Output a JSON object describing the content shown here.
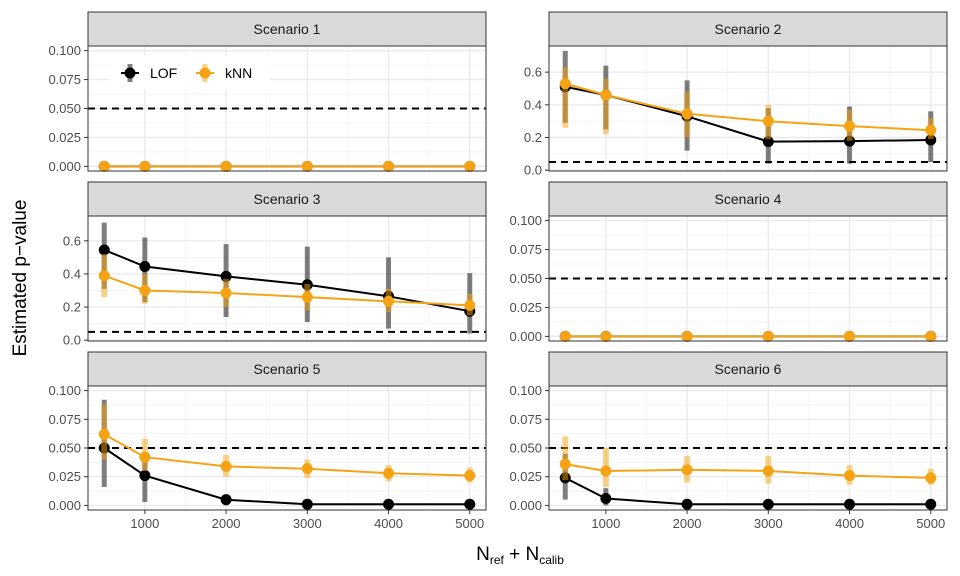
{
  "figure": {
    "ylabel": "Estimated p−value",
    "xlabel_main": "N",
    "xlabel_sub1": "ref",
    "xlabel_plus": " + N",
    "xlabel_sub2": "calib"
  },
  "colors": {
    "lof": "#000000",
    "knn": "#f5a314",
    "strip": "#d9d9d9",
    "threshold": "#000000"
  },
  "legend": {
    "panel_index": 0,
    "items": [
      "LOF",
      "kNN"
    ]
  },
  "chart_data": [
    {
      "type": "line",
      "title": "Scenario 1",
      "x": [
        500,
        1000,
        2000,
        3000,
        4000,
        5000
      ],
      "xlim": [
        300,
        5200
      ],
      "xticks": [
        1000,
        2000,
        3000,
        4000,
        5000
      ],
      "ylim": [
        -0.004,
        0.104
      ],
      "yticks": [
        0.0,
        0.025,
        0.05,
        0.075,
        0.1
      ],
      "ytick_labels": [
        "0.000",
        "0.025",
        "0.050",
        "0.075",
        "0.100"
      ],
      "threshold": 0.05,
      "show_xticks": false,
      "series": [
        {
          "name": "LOF",
          "values": [
            0,
            0,
            0,
            0,
            0,
            0
          ],
          "low": [
            0,
            0,
            0,
            0,
            0,
            0
          ],
          "high": [
            0,
            0,
            0,
            0,
            0,
            0
          ]
        },
        {
          "name": "kNN",
          "values": [
            0,
            0,
            0,
            0,
            0,
            0
          ],
          "low": [
            0,
            0,
            0,
            0,
            0,
            0
          ],
          "high": [
            0,
            0,
            0,
            0,
            0,
            0
          ]
        }
      ]
    },
    {
      "type": "line",
      "title": "Scenario 2",
      "x": [
        500,
        1000,
        2000,
        3000,
        4000,
        5000
      ],
      "xlim": [
        300,
        5200
      ],
      "xticks": [
        1000,
        2000,
        3000,
        4000,
        5000
      ],
      "ylim": [
        -0.005,
        0.76
      ],
      "yticks": [
        0.0,
        0.2,
        0.4,
        0.6
      ],
      "ytick_labels": [
        "0.0",
        "0.2",
        "0.4",
        "0.6"
      ],
      "threshold": 0.05,
      "show_xticks": false,
      "series": [
        {
          "name": "LOF",
          "values": [
            0.51,
            0.46,
            0.33,
            0.175,
            0.178,
            0.185
          ],
          "low": [
            0.29,
            0.25,
            0.12,
            0.04,
            0.04,
            0.05
          ],
          "high": [
            0.73,
            0.64,
            0.55,
            0.38,
            0.39,
            0.36
          ]
        },
        {
          "name": "kNN",
          "values": [
            0.53,
            0.46,
            0.345,
            0.3,
            0.27,
            0.245
          ],
          "low": [
            0.26,
            0.22,
            0.2,
            0.19,
            0.18,
            0.19
          ],
          "high": [
            0.63,
            0.56,
            0.48,
            0.4,
            0.37,
            0.32
          ]
        }
      ]
    },
    {
      "type": "line",
      "title": "Scenario 3",
      "x": [
        500,
        1000,
        2000,
        3000,
        4000,
        5000
      ],
      "xlim": [
        300,
        5200
      ],
      "xticks": [
        1000,
        2000,
        3000,
        4000,
        5000
      ],
      "ylim": [
        -0.005,
        0.75
      ],
      "yticks": [
        0.0,
        0.2,
        0.4,
        0.6
      ],
      "ytick_labels": [
        "0.0",
        "0.2",
        "0.4",
        "0.6"
      ],
      "threshold": 0.05,
      "show_xticks": false,
      "series": [
        {
          "name": "LOF",
          "values": [
            0.545,
            0.445,
            0.385,
            0.335,
            0.265,
            0.175
          ],
          "low": [
            0.31,
            0.23,
            0.14,
            0.11,
            0.07,
            0.04
          ],
          "high": [
            0.71,
            0.62,
            0.58,
            0.565,
            0.5,
            0.405
          ]
        },
        {
          "name": "kNN",
          "values": [
            0.39,
            0.3,
            0.285,
            0.26,
            0.235,
            0.21
          ],
          "low": [
            0.26,
            0.22,
            0.2,
            0.18,
            0.17,
            0.15
          ],
          "high": [
            0.52,
            0.4,
            0.37,
            0.34,
            0.31,
            0.28
          ]
        }
      ]
    },
    {
      "type": "line",
      "title": "Scenario 4",
      "x": [
        500,
        1000,
        2000,
        3000,
        4000,
        5000
      ],
      "xlim": [
        300,
        5200
      ],
      "xticks": [
        1000,
        2000,
        3000,
        4000,
        5000
      ],
      "ylim": [
        -0.004,
        0.104
      ],
      "yticks": [
        0.0,
        0.025,
        0.05,
        0.075,
        0.1
      ],
      "ytick_labels": [
        "0.000",
        "0.025",
        "0.050",
        "0.075",
        "0.100"
      ],
      "threshold": 0.05,
      "show_xticks": false,
      "series": [
        {
          "name": "LOF",
          "values": [
            0,
            0,
            0,
            0,
            0,
            0
          ],
          "low": [
            0,
            0,
            0,
            0,
            0,
            0
          ],
          "high": [
            0,
            0,
            0,
            0,
            0,
            0
          ]
        },
        {
          "name": "kNN",
          "values": [
            0,
            0,
            0,
            0,
            0,
            0
          ],
          "low": [
            0,
            0,
            0,
            0,
            0,
            0
          ],
          "high": [
            0,
            0,
            0,
            0,
            0,
            0
          ]
        }
      ]
    },
    {
      "type": "line",
      "title": "Scenario 5",
      "x": [
        500,
        1000,
        2000,
        3000,
        4000,
        5000
      ],
      "xlim": [
        300,
        5200
      ],
      "xticks": [
        1000,
        2000,
        3000,
        4000,
        5000
      ],
      "ylim": [
        -0.004,
        0.104
      ],
      "yticks": [
        0.0,
        0.025,
        0.05,
        0.075,
        0.1
      ],
      "ytick_labels": [
        "0.000",
        "0.025",
        "0.050",
        "0.075",
        "0.100"
      ],
      "threshold": 0.05,
      "show_xticks": true,
      "series": [
        {
          "name": "LOF",
          "values": [
            0.05,
            0.026,
            0.005,
            0.001,
            0.001,
            0.001
          ],
          "low": [
            0.016,
            0.003,
            0.0,
            0.0,
            0.0,
            0.0
          ],
          "high": [
            0.092,
            0.045,
            0.008,
            0.002,
            0.002,
            0.002
          ]
        },
        {
          "name": "kNN",
          "values": [
            0.062,
            0.042,
            0.034,
            0.032,
            0.028,
            0.026
          ],
          "low": [
            0.04,
            0.03,
            0.025,
            0.024,
            0.021,
            0.02
          ],
          "high": [
            0.088,
            0.058,
            0.044,
            0.04,
            0.035,
            0.033
          ]
        }
      ]
    },
    {
      "type": "line",
      "title": "Scenario 6",
      "x": [
        500,
        1000,
        2000,
        3000,
        4000,
        5000
      ],
      "xlim": [
        300,
        5200
      ],
      "xticks": [
        1000,
        2000,
        3000,
        4000,
        5000
      ],
      "ylim": [
        -0.004,
        0.104
      ],
      "yticks": [
        0.0,
        0.025,
        0.05,
        0.075,
        0.1
      ],
      "ytick_labels": [
        "0.000",
        "0.025",
        "0.050",
        "0.075",
        "0.100"
      ],
      "threshold": 0.05,
      "show_xticks": true,
      "series": [
        {
          "name": "LOF",
          "values": [
            0.024,
            0.006,
            0.001,
            0.001,
            0.001,
            0.001
          ],
          "low": [
            0.005,
            0.0,
            0.0,
            0.0,
            0.0,
            0.0
          ],
          "high": [
            0.045,
            0.015,
            0.003,
            0.002,
            0.002,
            0.002
          ]
        },
        {
          "name": "kNN",
          "values": [
            0.036,
            0.03,
            0.031,
            0.03,
            0.026,
            0.024
          ],
          "low": [
            0.022,
            0.016,
            0.02,
            0.019,
            0.018,
            0.018
          ],
          "high": [
            0.06,
            0.05,
            0.043,
            0.043,
            0.035,
            0.032
          ]
        }
      ]
    }
  ]
}
